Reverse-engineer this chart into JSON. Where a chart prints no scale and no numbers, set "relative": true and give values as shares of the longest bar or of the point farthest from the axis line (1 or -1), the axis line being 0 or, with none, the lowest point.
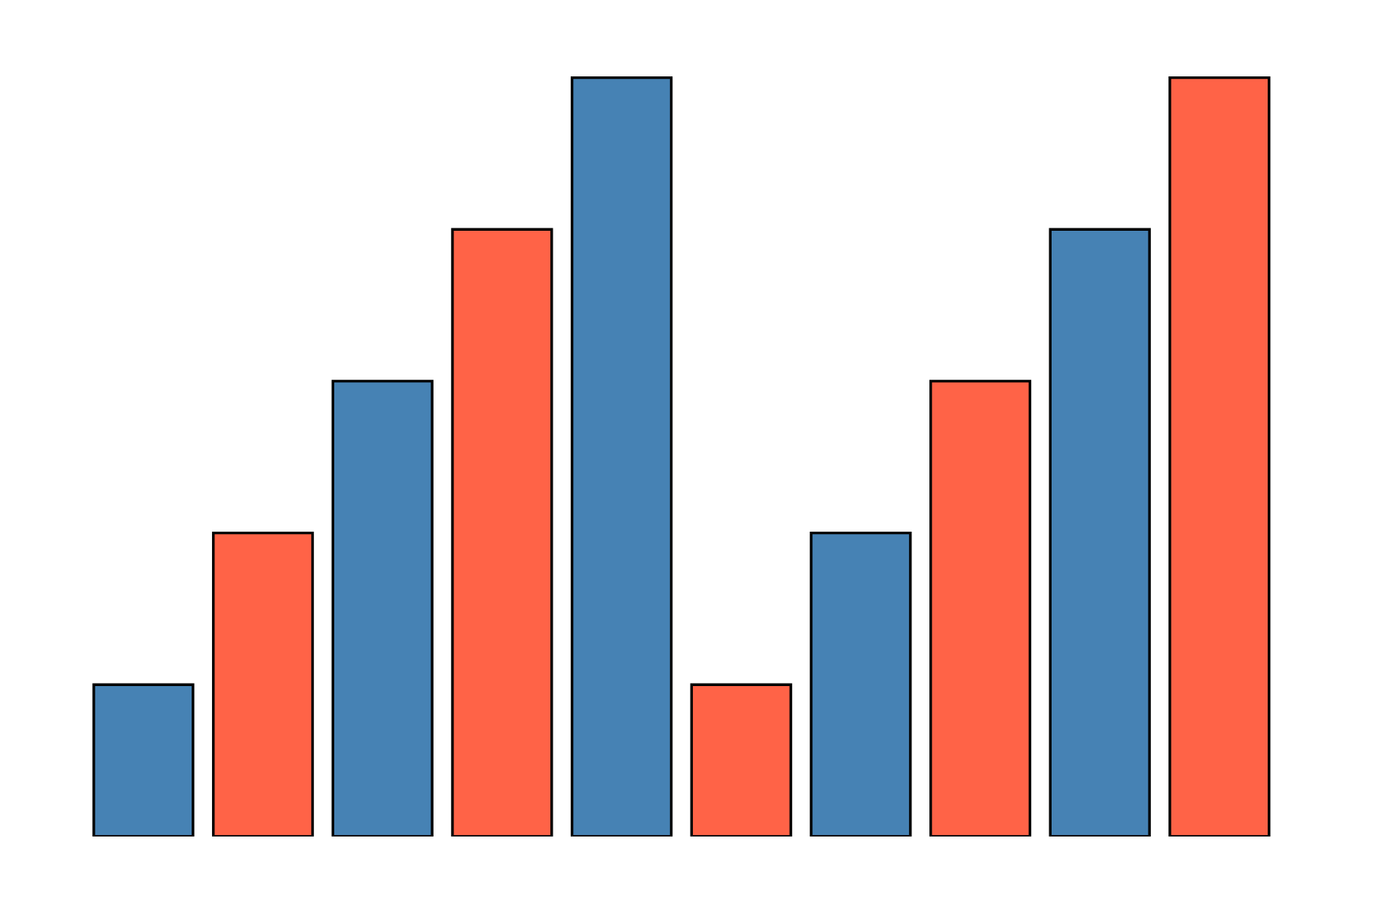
{
  "chart_data": {
    "type": "bar",
    "relative": true,
    "categories": [
      null,
      null,
      null,
      null,
      null,
      null,
      null,
      null,
      null,
      null
    ],
    "values": [
      0.2,
      0.4,
      0.6,
      0.8,
      1.0,
      0.2,
      0.4,
      0.6,
      0.8,
      1.0
    ],
    "colors": [
      "#4682b4",
      "#ff6347",
      "#4682b4",
      "#ff6347",
      "#4682b4",
      "#ff6347",
      "#4682b4",
      "#ff6347",
      "#4682b4",
      "#ff6347"
    ],
    "grid": false,
    "legend": false
  }
}
